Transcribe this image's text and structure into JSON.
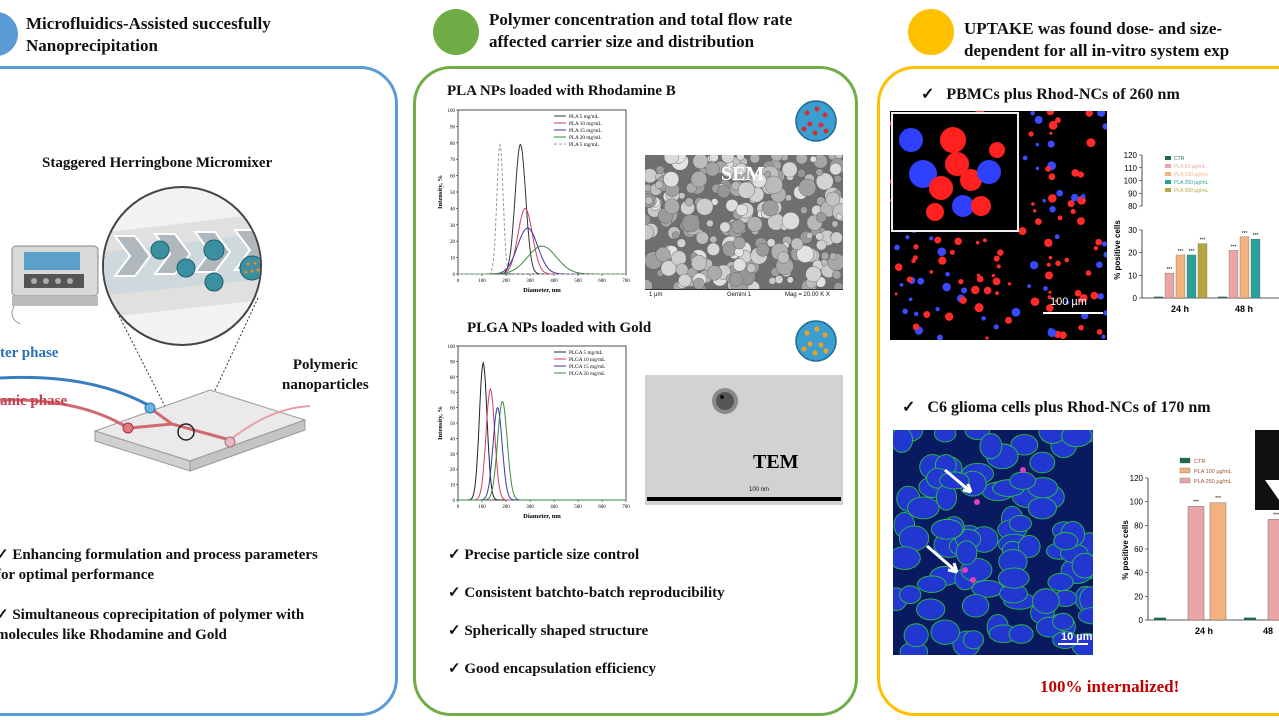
{
  "colors": {
    "blue": "#5b9bd5",
    "green": "#70ad47",
    "yellow": "#ffc000",
    "red_title": "#c00000"
  },
  "col1": {
    "title": "Microfluidics-Assisted succesfully\nNanoprecipitation",
    "diagram_title": "Staggered Herringbone Micromixer",
    "label_water": "ter phase",
    "label_organic": "anic phase",
    "label_polymeric": "Polymeric\nnanoparticles",
    "bullets": [
      "✓ Enhancing formulation and process parameters\n  for optimal performance",
      "✓ Simultaneous coprecipitation of polymer with\n  molecules like Rhodamine and Gold"
    ]
  },
  "col2": {
    "title": "Polymer concentration and total flow rate\naffected carrier size and distribution",
    "pla_title": "PLA NPs loaded with Rhodamine B",
    "plga_title": "PLGA NPs loaded with Gold",
    "sem_label": "SEM",
    "sem_scale": "1 µm",
    "sem_info": "Mag = 20.00 K X",
    "sem_mid": "Gemini 1",
    "tem_label": "TEM",
    "tem_scale": "100 nm",
    "bullets": [
      "✓ Precise particle size control",
      "✓ Consistent batchto-batch reproducibility",
      "✓ Spherically shaped structure",
      "✓ Good encapsulation efficiency"
    ]
  },
  "col3": {
    "title": "UPTAKE was found dose- and size-\ndependent for all in-vitro system exp",
    "sub1": "✓   PBMCs plus Rhod-NCs of 260 nm",
    "sub2": "✓   C6 glioma cells plus Rhod-NCs of 170 nm",
    "scale1": "100 µm",
    "scale2": "10 µm",
    "footer": "100% internalized!"
  },
  "chart_data": [
    {
      "type": "line",
      "title": "PLA NPs loaded with Rhodamine B",
      "xlabel": "Diameter, nm",
      "ylabel": "Intensity, %",
      "xlim": [
        0,
        700
      ],
      "ylim": [
        0,
        100
      ],
      "xticks": [
        "0",
        "100",
        "200",
        "300",
        "400",
        "500",
        "600",
        "700"
      ],
      "yticks": [
        "0",
        "10",
        "20",
        "30",
        "40",
        "50",
        "60",
        "70",
        "80",
        "90",
        "100"
      ],
      "legend": "top-right",
      "series": [
        {
          "name": "PLA  5 mg/mL",
          "color": "#333333",
          "dash": false,
          "mu": 260,
          "sigma": 22,
          "peak": 79
        },
        {
          "name": "PLA 10 mg/mL",
          "color": "#d04060",
          "dash": false,
          "mu": 280,
          "sigma": 30,
          "peak": 40
        },
        {
          "name": "PLA 15 mg/mL",
          "color": "#3838a8",
          "dash": false,
          "mu": 290,
          "sigma": 42,
          "peak": 28
        },
        {
          "name": "PLA 20 mg/mL",
          "color": "#3a8a3a",
          "dash": false,
          "mu": 350,
          "sigma": 60,
          "peak": 17
        },
        {
          "name": "PLA  5 mg/mL",
          "color": "#999999",
          "dash": true,
          "mu": 175,
          "sigma": 13,
          "peak": 79
        }
      ]
    },
    {
      "type": "line",
      "title": "PLGA NPs loaded with Gold",
      "xlabel": "Diameter, nm",
      "ylabel": "Intensity, %",
      "xlim": [
        0,
        700
      ],
      "ylim": [
        0,
        100
      ],
      "xticks": [
        "0",
        "100",
        "200",
        "300",
        "400",
        "500",
        "600",
        "700"
      ],
      "yticks": [
        "0",
        "10",
        "20",
        "30",
        "40",
        "50",
        "60",
        "70",
        "80",
        "90",
        "100"
      ],
      "legend": "top-right",
      "series": [
        {
          "name": "PLGA  5 mg/mL",
          "color": "#222222",
          "dash": false,
          "mu": 105,
          "sigma": 16,
          "peak": 89
        },
        {
          "name": "PLGA 10 mg/mL",
          "color": "#d04060",
          "dash": false,
          "mu": 135,
          "sigma": 18,
          "peak": 72
        },
        {
          "name": "PLGA 15 mg/mL",
          "color": "#3838a8",
          "dash": false,
          "mu": 165,
          "sigma": 19,
          "peak": 60
        },
        {
          "name": "PLGA 20 mg/mL",
          "color": "#3a8a3a",
          "dash": false,
          "mu": 185,
          "sigma": 20,
          "peak": 64
        }
      ]
    },
    {
      "type": "bar",
      "ylabel": "% positive cells",
      "categories": [
        "24 h",
        "48 h"
      ],
      "yticks": [
        "0",
        "10",
        "20",
        "30",
        "80",
        "90",
        "100",
        "110",
        "120"
      ],
      "broken_axis": [
        30,
        80
      ],
      "legend": "top-left",
      "significance": "***",
      "series": [
        {
          "name": "CTR",
          "color": "#1a6b4a",
          "values": [
            0.5,
            0.5
          ]
        },
        {
          "name": "PLA 50 µg/mL",
          "color": "#e8a6a6",
          "values": [
            11,
            21
          ]
        },
        {
          "name": "PLA 100 µg/mL",
          "color": "#f3b27d",
          "values": [
            19,
            27
          ]
        },
        {
          "name": "PLA 250 µg/mL",
          "color": "#2aa198",
          "values": [
            19,
            26
          ]
        },
        {
          "name": "PLA 500 µg/mL",
          "color": "#b5a642",
          "values": [
            24,
            null
          ]
        }
      ]
    },
    {
      "type": "bar",
      "ylabel": "% positive cells",
      "categories": [
        "24 h",
        "48"
      ],
      "yticks": [
        "0",
        "20",
        "40",
        "60",
        "80",
        "100",
        "120"
      ],
      "ylim": [
        0,
        120
      ],
      "legend": "top-left",
      "significance": "***",
      "series": [
        {
          "name": "CTR",
          "color": "#1a6b4a",
          "values": [
            2,
            2
          ]
        },
        {
          "name": "PLA 100 µg/mL",
          "color": "#f3b27d",
          "values": [
            null,
            null
          ]
        },
        {
          "name": "PLA 250 µg/mL",
          "color": "#e8a6a6",
          "values": [
            96,
            85
          ]
        }
      ],
      "bars_24h": [
        {
          "series": "PLA 250 µg/mL",
          "value": 96,
          "color": "#e8a6a6"
        },
        {
          "series": "PLA 100 µg/mL",
          "value": 99,
          "color": "#f3b27d"
        }
      ]
    }
  ]
}
